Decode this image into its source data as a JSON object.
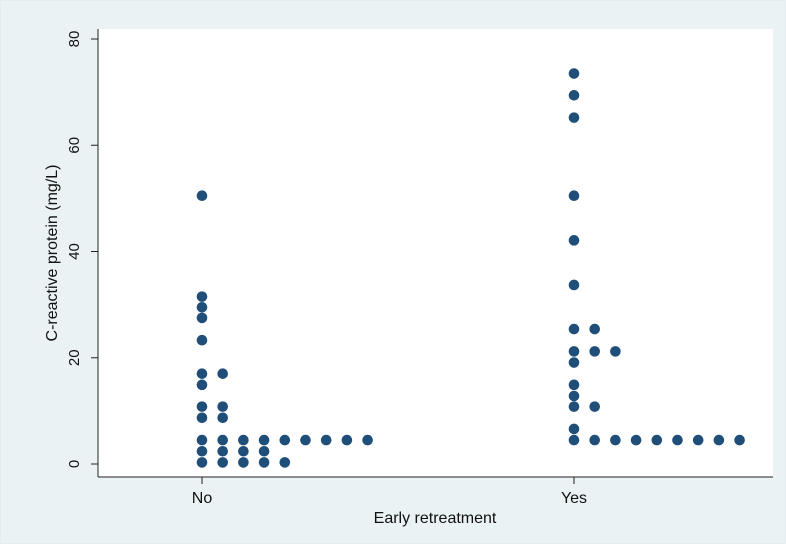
{
  "chart_data": {
    "type": "scatter",
    "title": "",
    "xlabel": "Early retreatment",
    "ylabel": "C-reactive protein (mg/L)",
    "categories": [
      "No",
      "Yes"
    ],
    "ylim": [
      0,
      80
    ],
    "yticks": [
      0,
      20,
      40,
      60,
      80
    ],
    "grid": false,
    "legend": "none",
    "colors": {
      "marker": "#1f4e79",
      "axis": "#222222",
      "background": "#eaf2f3",
      "plot_bg": "#ffffff"
    },
    "rows": [
      {
        "category": "No",
        "y": 50.5,
        "count": 1
      },
      {
        "category": "No",
        "y": 31.5,
        "count": 1
      },
      {
        "category": "No",
        "y": 29.5,
        "count": 1
      },
      {
        "category": "No",
        "y": 27.5,
        "count": 1
      },
      {
        "category": "No",
        "y": 23.3,
        "count": 1
      },
      {
        "category": "No",
        "y": 17.0,
        "count": 2
      },
      {
        "category": "No",
        "y": 14.9,
        "count": 1
      },
      {
        "category": "No",
        "y": 10.8,
        "count": 2
      },
      {
        "category": "No",
        "y": 8.7,
        "count": 2
      },
      {
        "category": "No",
        "y": 4.5,
        "count": 9
      },
      {
        "category": "No",
        "y": 2.4,
        "count": 4
      },
      {
        "category": "No",
        "y": 0.3,
        "count": 5
      },
      {
        "category": "Yes",
        "y": 73.5,
        "count": 1
      },
      {
        "category": "Yes",
        "y": 69.4,
        "count": 1
      },
      {
        "category": "Yes",
        "y": 65.2,
        "count": 1
      },
      {
        "category": "Yes",
        "y": 50.5,
        "count": 1
      },
      {
        "category": "Yes",
        "y": 42.1,
        "count": 1
      },
      {
        "category": "Yes",
        "y": 33.7,
        "count": 1
      },
      {
        "category": "Yes",
        "y": 25.4,
        "count": 2
      },
      {
        "category": "Yes",
        "y": 21.2,
        "count": 3
      },
      {
        "category": "Yes",
        "y": 19.1,
        "count": 1
      },
      {
        "category": "Yes",
        "y": 14.9,
        "count": 1
      },
      {
        "category": "Yes",
        "y": 12.8,
        "count": 1
      },
      {
        "category": "Yes",
        "y": 10.8,
        "count": 2
      },
      {
        "category": "Yes",
        "y": 6.6,
        "count": 1
      },
      {
        "category": "Yes",
        "y": 4.5,
        "count": 9
      }
    ]
  }
}
